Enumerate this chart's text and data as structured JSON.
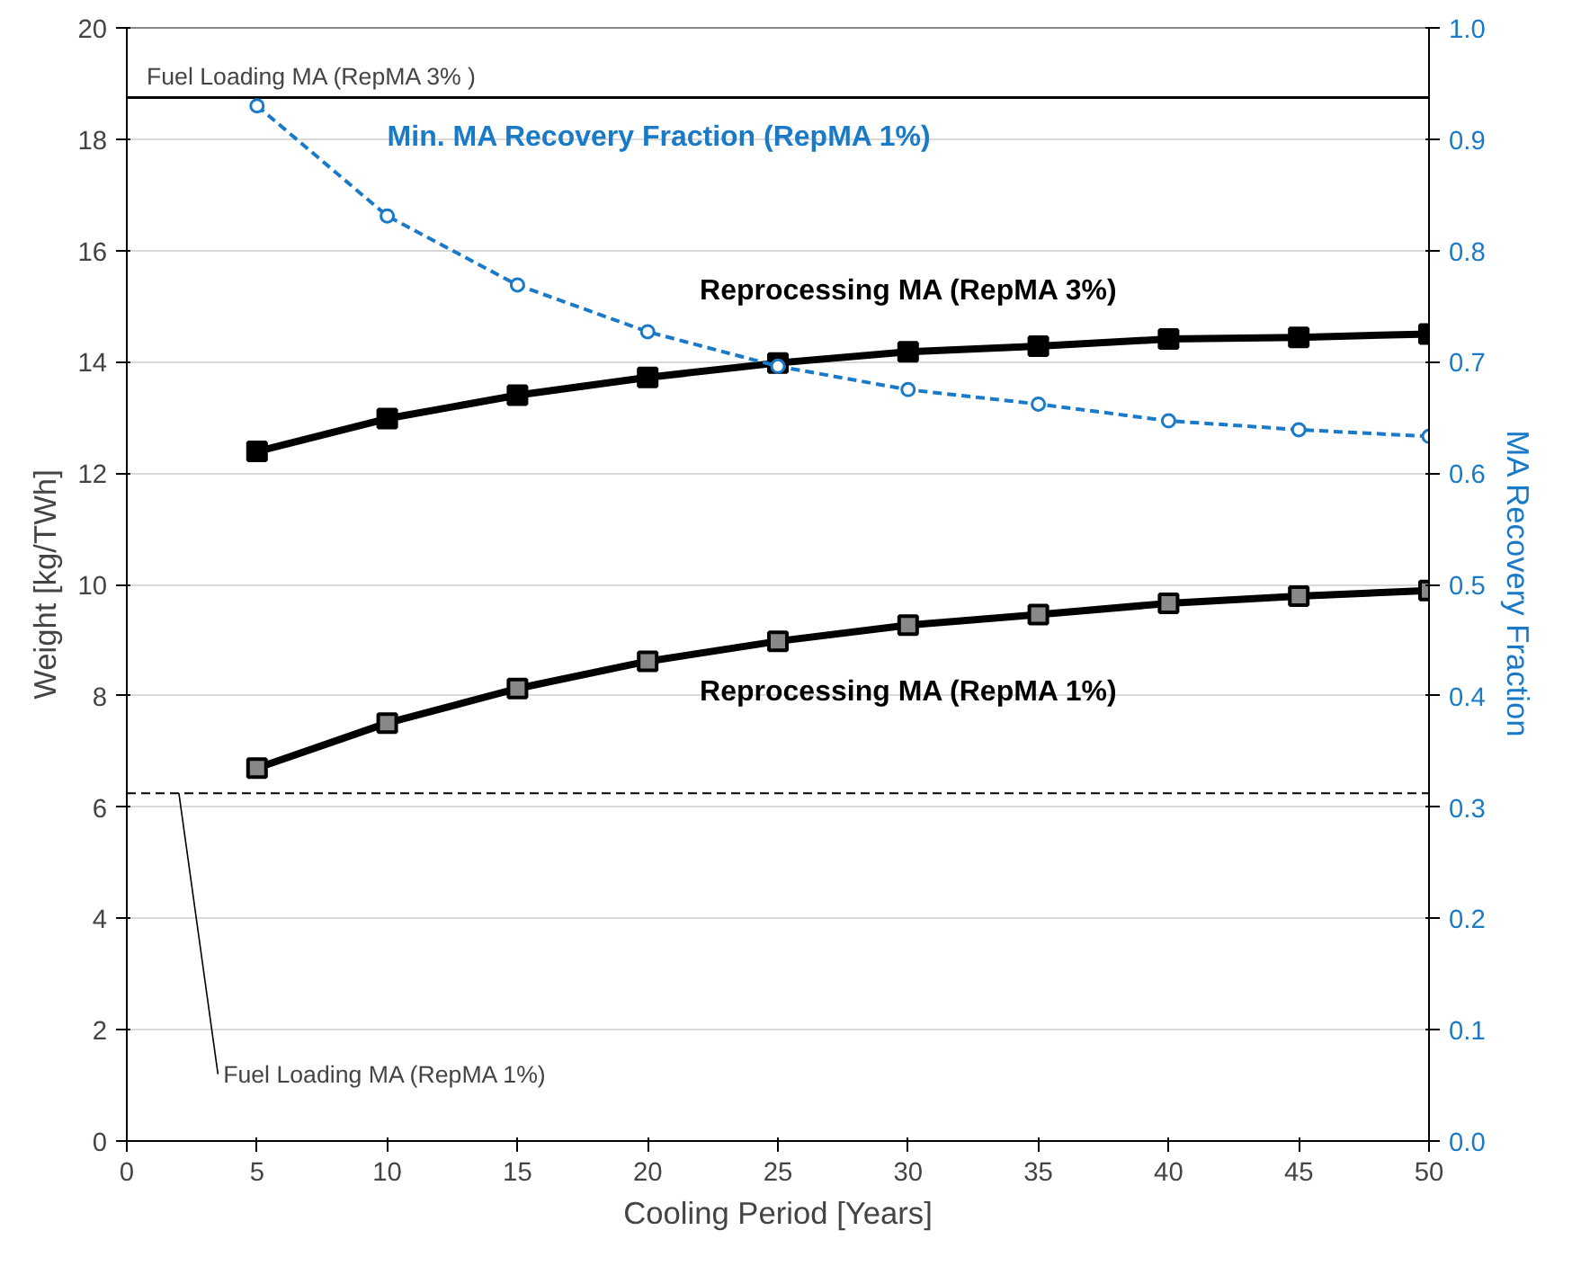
{
  "chart_data": {
    "type": "line",
    "xlabel": "Cooling Period [Years]",
    "ylabel": "Weight [kg/TWh]",
    "y2label": "MA Recovery Fraction",
    "x": [
      5,
      10,
      15,
      20,
      25,
      30,
      35,
      40,
      45,
      50
    ],
    "series": [
      {
        "name": "Reprocessing MA (RepMA 3%)",
        "color": "#000000",
        "values": [
          12.39,
          12.98,
          13.4,
          13.72,
          13.98,
          14.18,
          14.28,
          14.41,
          14.44,
          14.5
        ],
        "marker": "square",
        "line_style": "solid"
      },
      {
        "name": "Reprocessing MA (RepMA 1%)",
        "color": "#000000",
        "values": [
          6.7,
          7.51,
          8.13,
          8.62,
          8.98,
          9.27,
          9.46,
          9.66,
          9.79,
          9.89
        ],
        "marker": "square",
        "line_style": "solid"
      },
      {
        "name": "Min. MA Recovery Fraction (RepMA 1%)",
        "color": "#1a7ac8",
        "values": [
          0.93,
          0.831,
          0.769,
          0.727,
          0.696,
          0.675,
          0.662,
          0.647,
          0.639,
          0.633
        ],
        "axis": "y2",
        "marker": "circle",
        "line_style": "dashed"
      }
    ],
    "xlim": [
      0,
      50
    ],
    "xticks": [
      0,
      5,
      10,
      15,
      20,
      25,
      30,
      35,
      40,
      45,
      50
    ],
    "ylim": [
      0,
      20
    ],
    "yticks": [
      0,
      2,
      4,
      6,
      8,
      10,
      12,
      14,
      16,
      18,
      20
    ],
    "y2lim": [
      0,
      1
    ],
    "y2ticks": [
      {
        "value": 0,
        "label": "0.0"
      },
      {
        "value": 0.1,
        "label": "0.1"
      },
      {
        "value": 0.2,
        "label": "0.2"
      },
      {
        "value": 0.3,
        "label": "0.3"
      },
      {
        "value": 0.4,
        "label": "0.4"
      },
      {
        "value": 0.5,
        "label": "0.5"
      },
      {
        "value": 0.6,
        "label": "0.6"
      },
      {
        "value": 0.7,
        "label": "0.7"
      },
      {
        "value": 0.8,
        "label": "0.8"
      },
      {
        "value": 0.9,
        "label": "0.9"
      },
      {
        "value": 1,
        "label": "1.0"
      }
    ],
    "ref_lines": [
      {
        "axis": "y",
        "value": 18.75,
        "label": "Fuel Loading MA (RepMA 3% )",
        "color": "#000000",
        "line_style": "solid"
      },
      {
        "axis": "y",
        "value": 6.25,
        "label": "Fuel Loading MA (RepMA 1%)",
        "color": "#000000",
        "line_style": "dashed"
      }
    ],
    "grid": "y"
  }
}
